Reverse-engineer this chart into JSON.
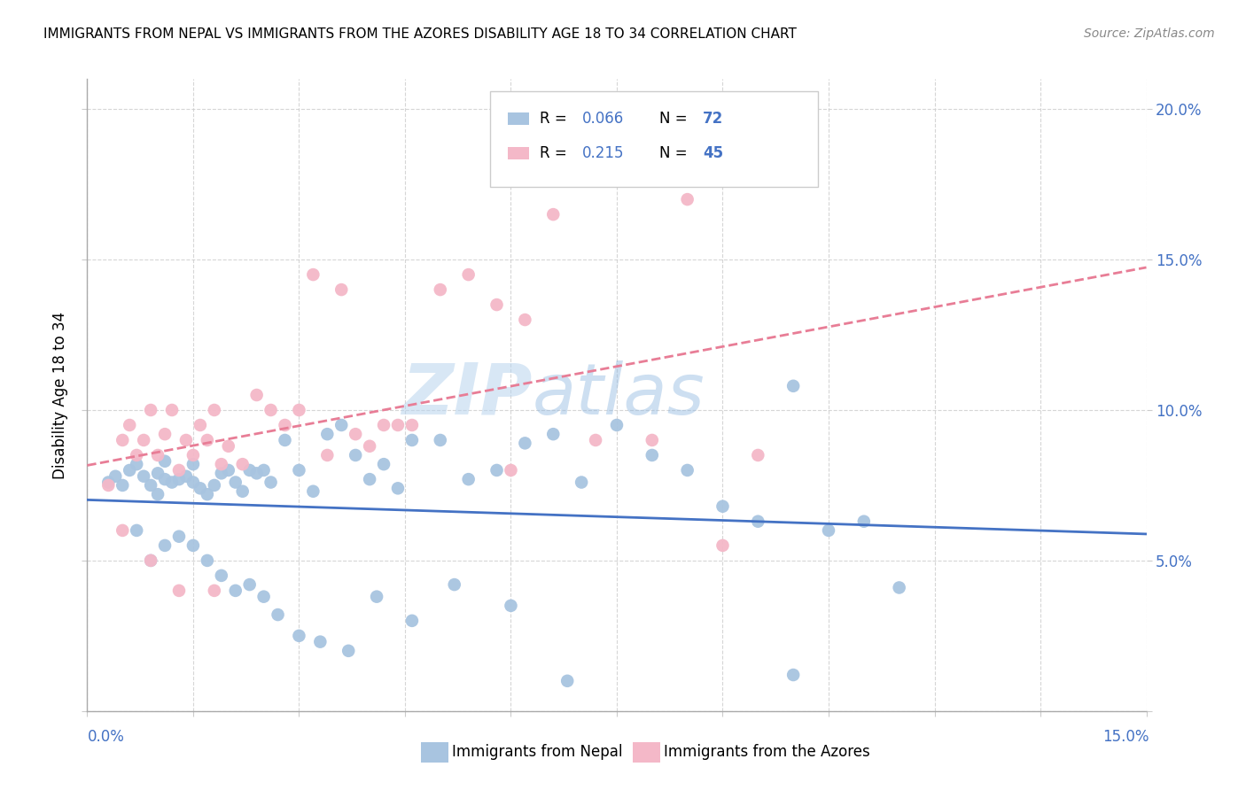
{
  "title": "IMMIGRANTS FROM NEPAL VS IMMIGRANTS FROM THE AZORES DISABILITY AGE 18 TO 34 CORRELATION CHART",
  "source": "Source: ZipAtlas.com",
  "ylabel": "Disability Age 18 to 34",
  "xlim": [
    0.0,
    0.15
  ],
  "ylim": [
    0.0,
    0.21
  ],
  "nepal_color": "#a8c4e0",
  "azores_color": "#f4b8c8",
  "nepal_line_color": "#4472c4",
  "azores_line_color": "#e87d96",
  "nepal_R": 0.066,
  "nepal_N": 72,
  "azores_R": 0.215,
  "azores_N": 45,
  "legend_label_nepal": "Immigrants from Nepal",
  "legend_label_azores": "Immigrants from the Azores",
  "nepal_scatter_x": [
    0.003,
    0.004,
    0.005,
    0.006,
    0.007,
    0.008,
    0.009,
    0.01,
    0.01,
    0.011,
    0.011,
    0.012,
    0.013,
    0.014,
    0.015,
    0.015,
    0.016,
    0.017,
    0.018,
    0.019,
    0.02,
    0.021,
    0.022,
    0.023,
    0.024,
    0.025,
    0.026,
    0.028,
    0.03,
    0.032,
    0.034,
    0.036,
    0.038,
    0.04,
    0.042,
    0.044,
    0.046,
    0.05,
    0.054,
    0.058,
    0.062,
    0.066,
    0.07,
    0.075,
    0.08,
    0.085,
    0.09,
    0.095,
    0.1,
    0.105,
    0.11,
    0.115,
    0.007,
    0.009,
    0.011,
    0.013,
    0.015,
    0.017,
    0.019,
    0.021,
    0.023,
    0.025,
    0.027,
    0.03,
    0.033,
    0.037,
    0.041,
    0.046,
    0.052,
    0.06,
    0.068,
    0.1
  ],
  "nepal_scatter_y": [
    0.076,
    0.078,
    0.075,
    0.08,
    0.082,
    0.078,
    0.075,
    0.072,
    0.079,
    0.077,
    0.083,
    0.076,
    0.077,
    0.078,
    0.082,
    0.076,
    0.074,
    0.072,
    0.075,
    0.079,
    0.08,
    0.076,
    0.073,
    0.08,
    0.079,
    0.08,
    0.076,
    0.09,
    0.08,
    0.073,
    0.092,
    0.095,
    0.085,
    0.077,
    0.082,
    0.074,
    0.09,
    0.09,
    0.077,
    0.08,
    0.089,
    0.092,
    0.076,
    0.095,
    0.085,
    0.08,
    0.068,
    0.063,
    0.108,
    0.06,
    0.063,
    0.041,
    0.06,
    0.05,
    0.055,
    0.058,
    0.055,
    0.05,
    0.045,
    0.04,
    0.042,
    0.038,
    0.032,
    0.025,
    0.023,
    0.02,
    0.038,
    0.03,
    0.042,
    0.035,
    0.01,
    0.012
  ],
  "azores_scatter_x": [
    0.003,
    0.005,
    0.006,
    0.007,
    0.008,
    0.009,
    0.01,
    0.011,
    0.012,
    0.013,
    0.014,
    0.015,
    0.016,
    0.017,
    0.018,
    0.019,
    0.02,
    0.022,
    0.024,
    0.026,
    0.028,
    0.03,
    0.032,
    0.034,
    0.036,
    0.038,
    0.04,
    0.042,
    0.044,
    0.046,
    0.05,
    0.054,
    0.058,
    0.062,
    0.066,
    0.072,
    0.08,
    0.085,
    0.09,
    0.095,
    0.005,
    0.009,
    0.013,
    0.018,
    0.06
  ],
  "azores_scatter_y": [
    0.075,
    0.09,
    0.095,
    0.085,
    0.09,
    0.1,
    0.085,
    0.092,
    0.1,
    0.08,
    0.09,
    0.085,
    0.095,
    0.09,
    0.1,
    0.082,
    0.088,
    0.082,
    0.105,
    0.1,
    0.095,
    0.1,
    0.145,
    0.085,
    0.14,
    0.092,
    0.088,
    0.095,
    0.095,
    0.095,
    0.14,
    0.145,
    0.135,
    0.13,
    0.165,
    0.09,
    0.09,
    0.17,
    0.055,
    0.085,
    0.06,
    0.05,
    0.04,
    0.04,
    0.08
  ]
}
